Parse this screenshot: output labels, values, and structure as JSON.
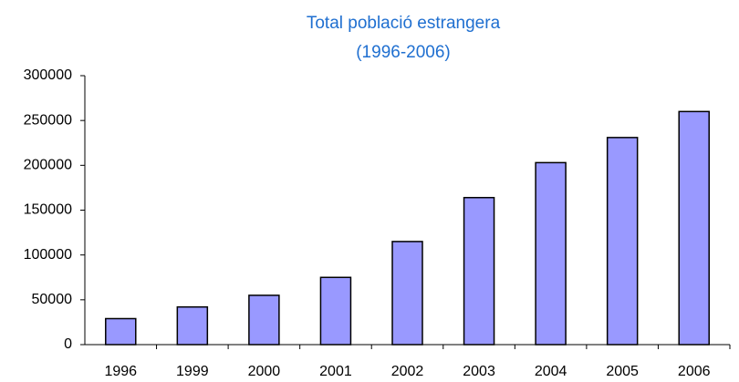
{
  "chart_data": {
    "type": "bar",
    "title": "Total població estrangera",
    "subtitle": "(1996-2006)",
    "categories": [
      "1996",
      "1999",
      "2000",
      "2001",
      "2002",
      "2003",
      "2004",
      "2005",
      "2006"
    ],
    "values": [
      29000,
      42000,
      55000,
      75000,
      115000,
      164000,
      203000,
      231000,
      260000
    ],
    "color": "#9999ff",
    "ylim": [
      0,
      300000
    ],
    "yticks": [
      0,
      50000,
      100000,
      150000,
      200000,
      250000,
      300000
    ],
    "grid": false
  }
}
